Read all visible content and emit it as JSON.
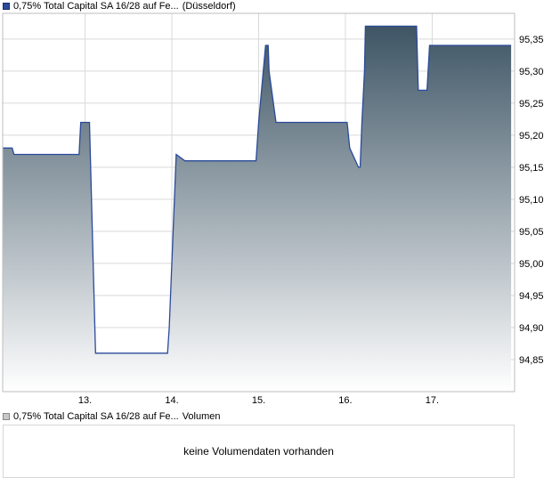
{
  "legend": {
    "price_series": "0,75% Total Capital SA 16/28 auf Fe...",
    "price_venue": "(Düsseldorf)",
    "volume_series": "0,75% Total Capital SA 16/28 auf Fe...",
    "volume_label": "Volumen"
  },
  "volume": {
    "empty_message": "keine Volumendaten vorhanden"
  },
  "colors": {
    "line": "#2a4a9a",
    "fill_top": "#3e5565",
    "fill_bottom": "#ffffff",
    "grid": "#d9d9d9"
  },
  "chart_data": {
    "type": "area",
    "x_tick_labels": [
      "13.",
      "14.",
      "15.",
      "16.",
      "17."
    ],
    "y_tick_labels": [
      "94,85",
      "94,90",
      "94,95",
      "95,00",
      "95,05",
      "95,10",
      "95,15",
      "95,20",
      "95,25",
      "95,30",
      "95,35"
    ],
    "y_ticks": [
      94.85,
      94.9,
      94.95,
      95.0,
      95.05,
      95.1,
      95.15,
      95.2,
      95.25,
      95.3,
      95.35
    ],
    "ylim": [
      94.8,
      95.39
    ],
    "xlim": [
      12.05,
      17.95
    ],
    "grid": true,
    "series": [
      {
        "x": [
          12.05,
          12.16,
          12.18,
          12.75,
          12.78,
          12.93,
          12.95,
          13.05,
          13.12,
          13.15,
          13.95,
          13.97,
          14.05,
          14.15,
          14.97,
          15.0,
          15.08,
          15.11,
          15.12,
          15.2,
          15.22,
          15.24,
          16.02,
          16.05,
          16.15,
          16.17,
          16.19,
          16.22,
          16.23,
          16.27,
          16.3,
          16.82,
          16.84,
          16.94,
          16.97,
          17.01,
          17.03,
          17.91
        ],
        "y": [
          95.18,
          95.18,
          95.17,
          95.17,
          95.17,
          95.17,
          95.22,
          95.22,
          94.86,
          94.86,
          94.86,
          94.9,
          95.17,
          95.16,
          95.16,
          95.22,
          95.34,
          95.34,
          95.3,
          95.22,
          95.22,
          95.22,
          95.22,
          95.18,
          95.15,
          95.15,
          95.22,
          95.3,
          95.37,
          95.37,
          95.37,
          95.37,
          95.27,
          95.27,
          95.34,
          95.34,
          95.34,
          95.34
        ]
      }
    ]
  }
}
